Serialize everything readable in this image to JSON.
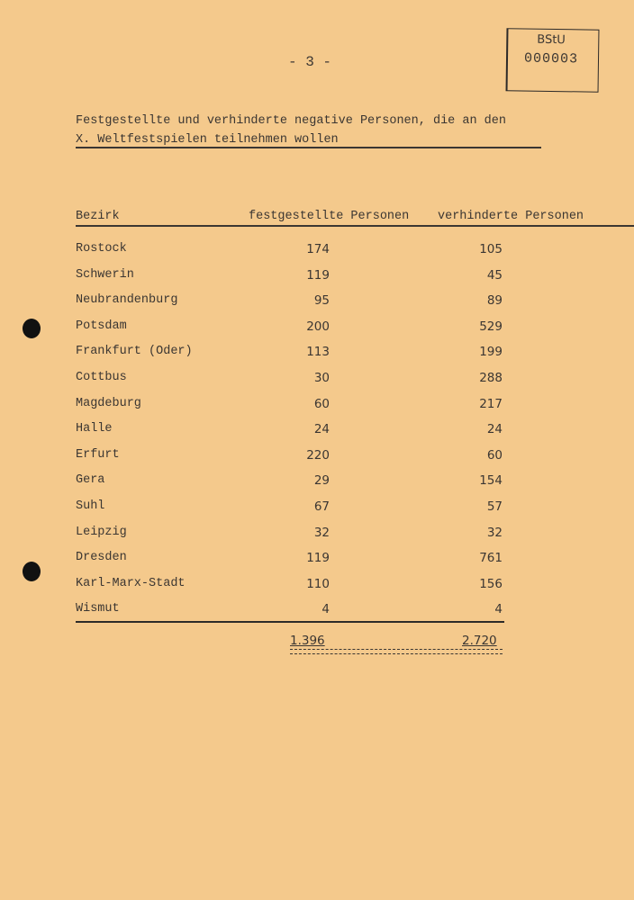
{
  "page_number": "- 3 -",
  "stamp": {
    "line1": "BStU",
    "line2": "000003"
  },
  "title": {
    "line1": "Festgestellte und verhinderte negative Personen, die an den",
    "line2": "X. Weltfestspielen teilnehmen wollen"
  },
  "table": {
    "headers": [
      "Bezirk",
      "festgestellte Personen",
      "verhinderte Personen"
    ],
    "rows": [
      [
        "Rostock",
        "174",
        "105"
      ],
      [
        "Schwerin",
        "119",
        "45"
      ],
      [
        "Neubrandenburg",
        "95",
        "89"
      ],
      [
        "Potsdam",
        "200",
        "529"
      ],
      [
        "Frankfurt (Oder)",
        "113",
        "199"
      ],
      [
        "Cottbus",
        "30",
        "288"
      ],
      [
        "Magdeburg",
        "60",
        "217"
      ],
      [
        "Halle",
        "24",
        "24"
      ],
      [
        "Erfurt",
        "220",
        "60"
      ],
      [
        "Gera",
        "29",
        "154"
      ],
      [
        "Suhl",
        "67",
        "57"
      ],
      [
        "Leipzig",
        "32",
        "32"
      ],
      [
        "Dresden",
        "119",
        "761"
      ],
      [
        "Karl-Marx-Stadt",
        "110",
        "156"
      ],
      [
        "Wismut",
        "4",
        "4"
      ]
    ],
    "totals": [
      "1.396",
      "2.720"
    ]
  }
}
